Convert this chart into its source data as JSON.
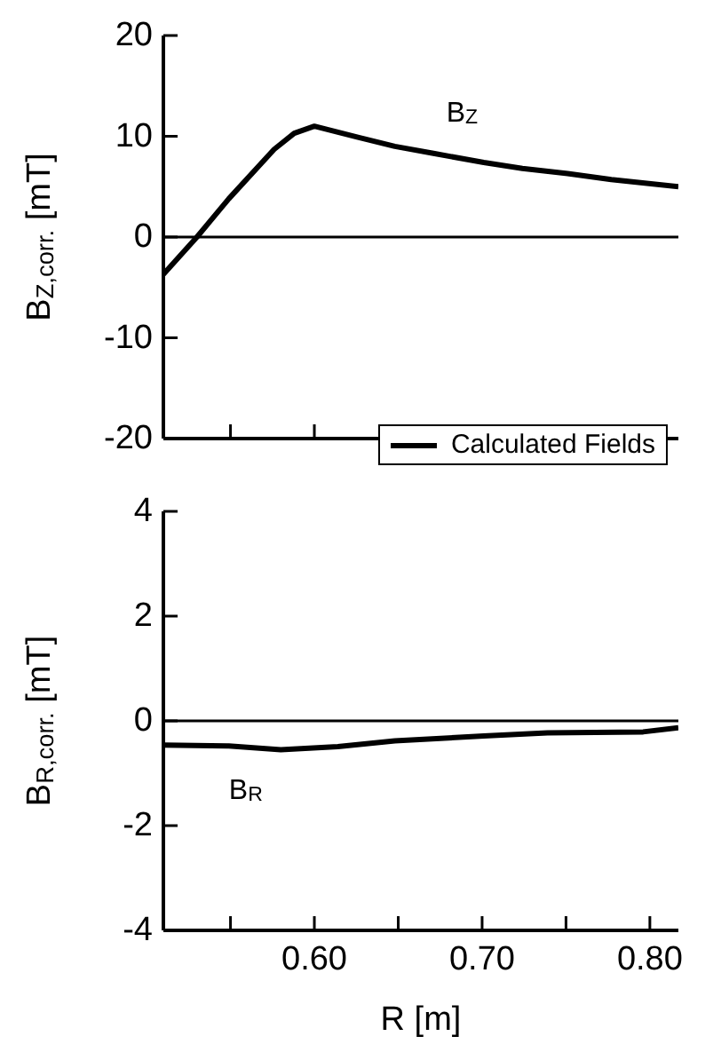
{
  "chart_data": [
    {
      "type": "line",
      "ylabel": "B$_{Z,corr.}$ [mT]",
      "x": [
        0.51,
        0.53,
        0.549,
        0.576,
        0.588,
        0.6,
        0.626,
        0.648,
        0.671,
        0.701,
        0.724,
        0.751,
        0.777,
        0.817
      ],
      "series": [
        {
          "name": "Calculated Fields",
          "color": "#000000",
          "values": [
            -3.7,
            0,
            3.8,
            8.7,
            10.3,
            11.0,
            9.9,
            9.0,
            8.3,
            7.4,
            6.8,
            6.3,
            5.7,
            5.0
          ]
        }
      ],
      "xlim": [
        0.51,
        0.817
      ],
      "xticks": [
        {
          "value": 0.55,
          "label": null
        },
        {
          "value": 0.6,
          "label": null
        },
        {
          "value": 0.65,
          "label": null
        },
        {
          "value": 0.7,
          "label": null
        },
        {
          "value": 0.75,
          "label": null
        },
        {
          "value": 0.8,
          "label": null
        }
      ],
      "ylim": [
        -20,
        20
      ],
      "yticks": [
        -20,
        -10,
        0,
        10,
        20
      ],
      "tick_labels": "y",
      "grid": false,
      "legend": "bottom right",
      "marker": "none",
      "line_style": "solid",
      "ref_lines": [
        {
          "axis": "y",
          "value": 0,
          "color": "#000000"
        }
      ],
      "annotations": [
        "B$_{Z}$"
      ]
    },
    {
      "type": "line",
      "xlabel": "R [m]",
      "ylabel": "B$_{R,corr.}$ [mT]",
      "x": [
        0.51,
        0.549,
        0.58,
        0.614,
        0.648,
        0.701,
        0.739,
        0.796,
        0.817
      ],
      "series": [
        {
          "color": "#000000",
          "values": [
            -0.46,
            -0.48,
            -0.55,
            -0.49,
            -0.38,
            -0.29,
            -0.23,
            -0.21,
            -0.13
          ]
        }
      ],
      "xlim": [
        0.51,
        0.817
      ],
      "xticks": [
        {
          "value": 0.55,
          "label": null
        },
        {
          "value": 0.6,
          "label": "0.60"
        },
        {
          "value": 0.65,
          "label": null
        },
        {
          "value": 0.7,
          "label": "0.70"
        },
        {
          "value": 0.75,
          "label": null
        },
        {
          "value": 0.8,
          "label": "0.80"
        }
      ],
      "ylim": [
        -4,
        4
      ],
      "yticks": [
        -4,
        -2,
        0,
        2,
        4
      ],
      "grid": false,
      "legend": false,
      "marker": "none",
      "line_style": "solid",
      "ref_lines": [
        {
          "axis": "y",
          "value": 0,
          "color": "#000000"
        }
      ],
      "annotations": [
        "B$_{R}$"
      ]
    }
  ]
}
